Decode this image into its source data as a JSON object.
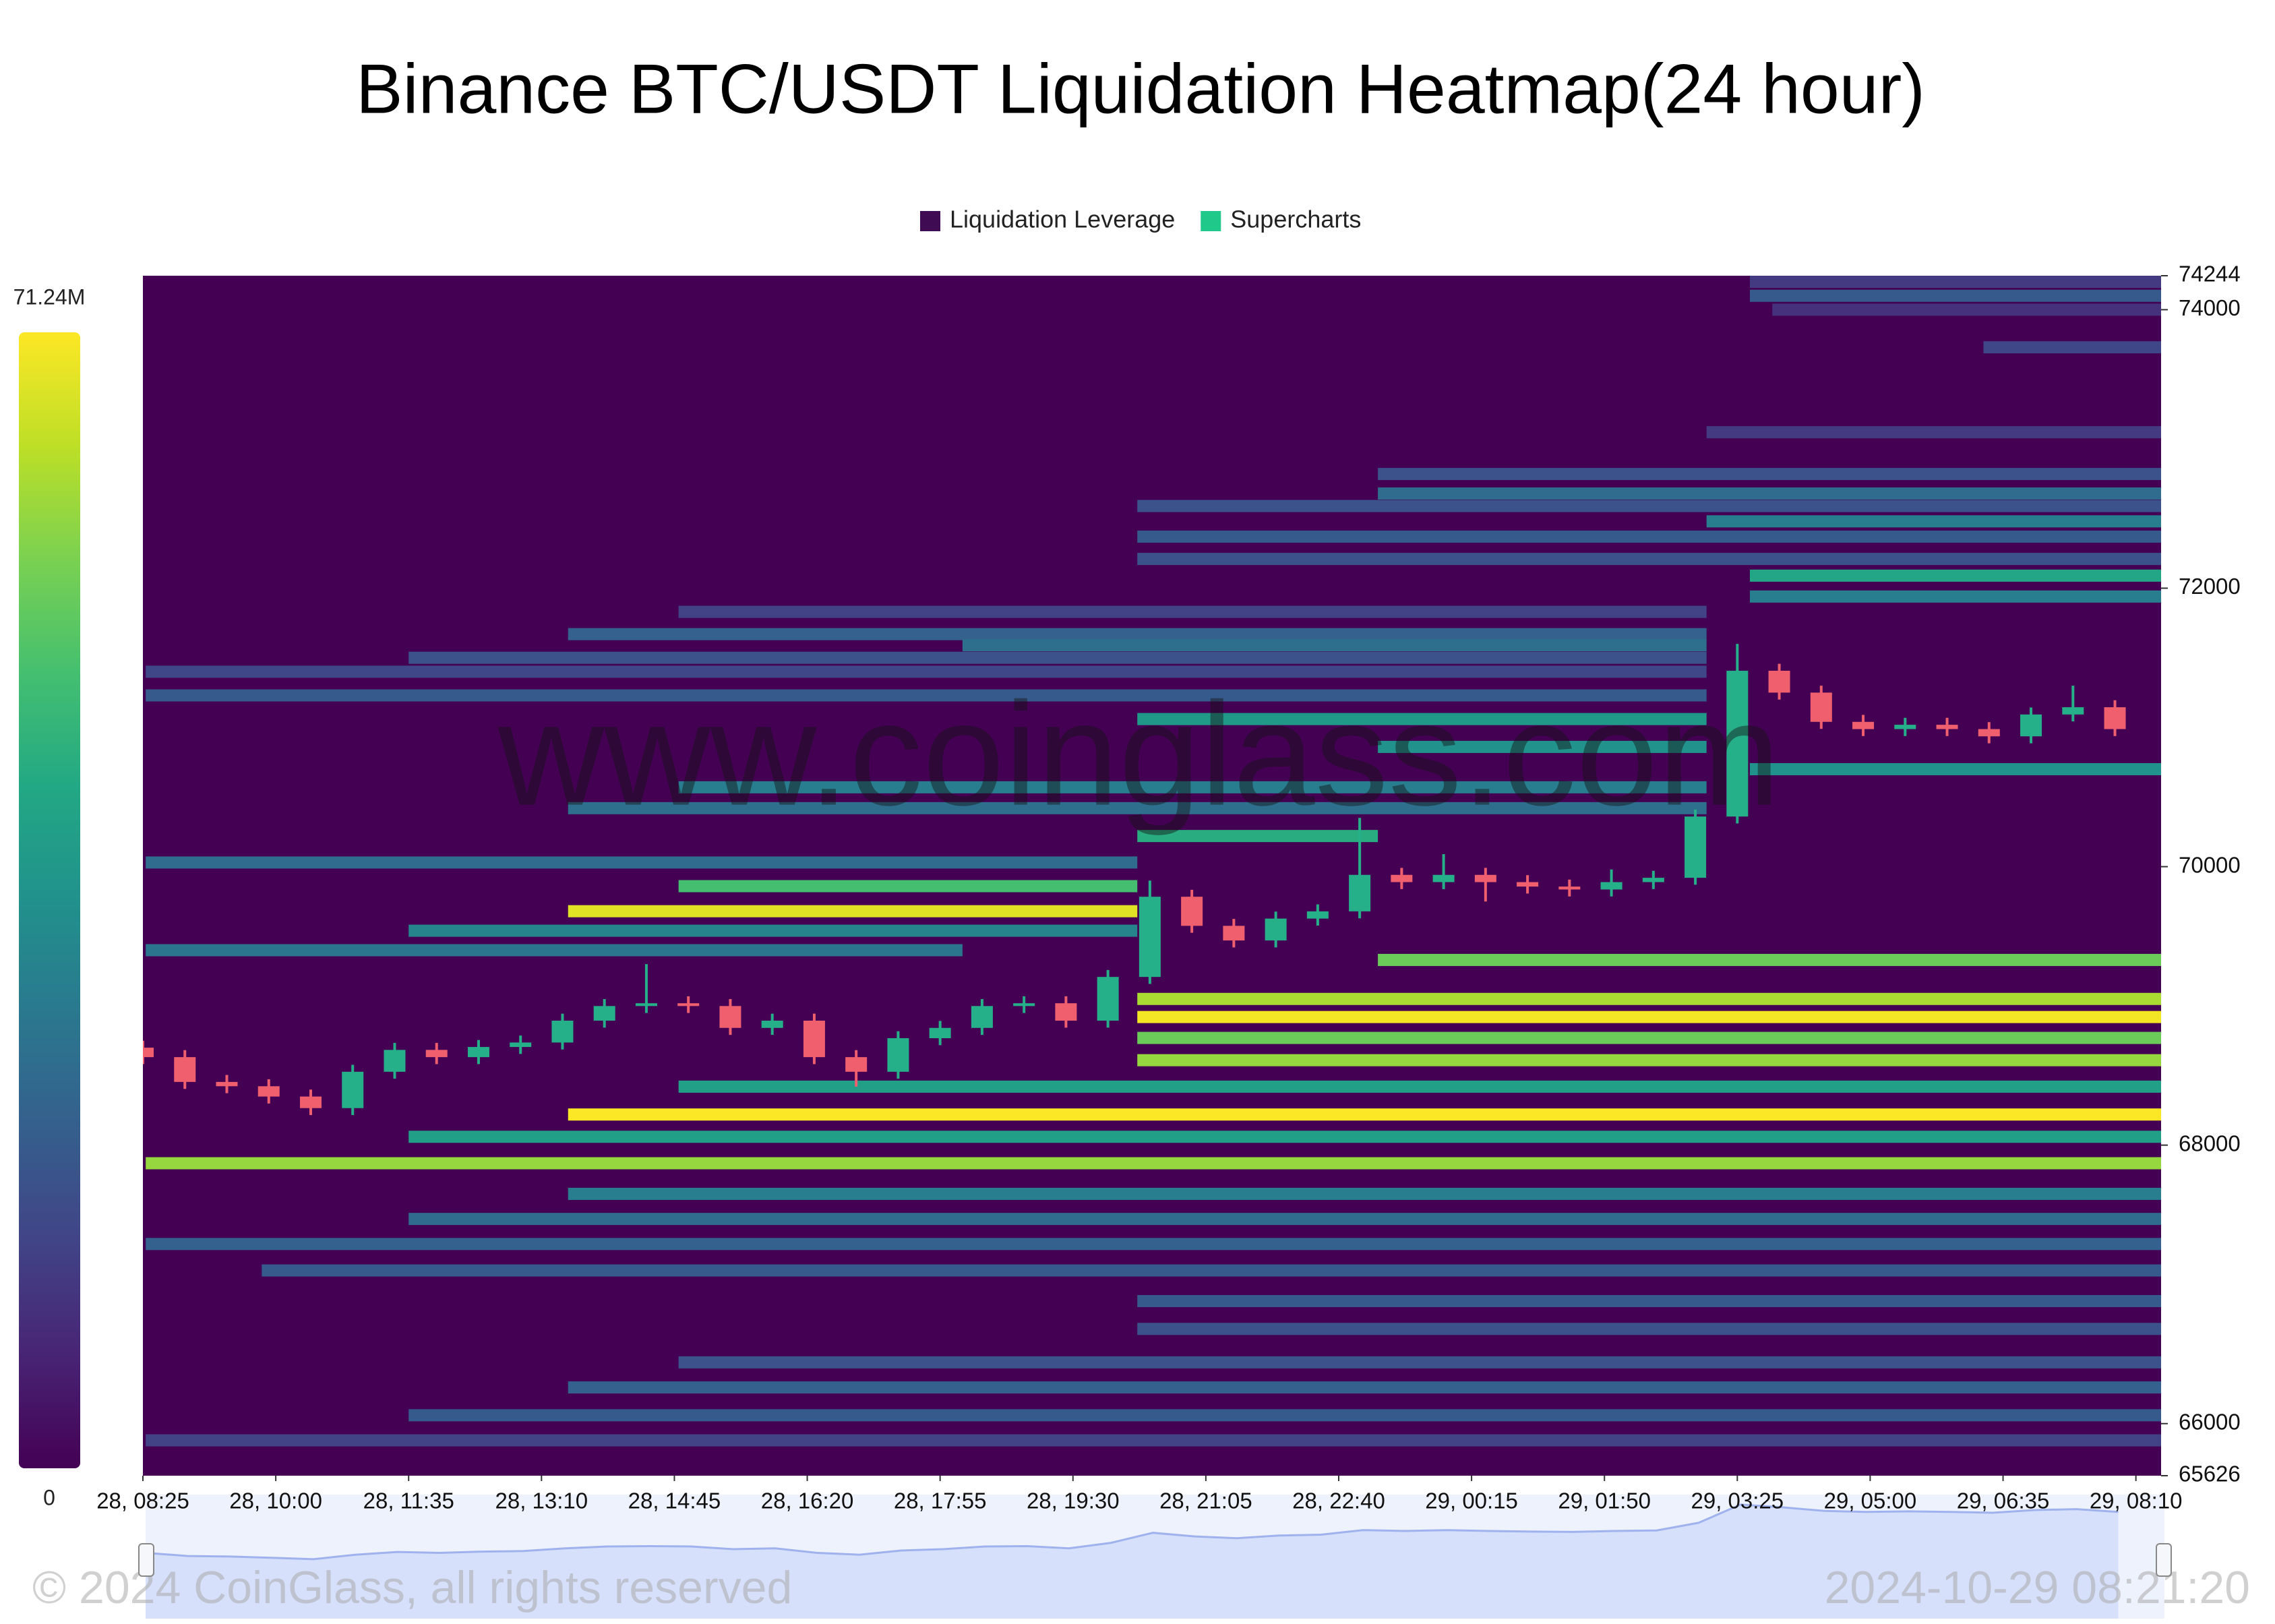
{
  "chart_data": {
    "type": "heatmap",
    "title": "Binance BTC/USDT Liquidation Heatmap(24 hour)",
    "legend": [
      {
        "name": "Liquidation Leverage",
        "color": "#3f0b52"
      },
      {
        "name": "Supercharts",
        "color": "#20c98a"
      }
    ],
    "colorbar": {
      "colormap": "viridis",
      "lim": [
        0,
        71240000
      ],
      "ticks": [
        0,
        {
          "value": 71240000,
          "label": "71.24M"
        }
      ]
    },
    "ylim": [
      65626,
      74244
    ],
    "yticks": [
      65626,
      66000,
      68000,
      70000,
      72000,
      74000,
      74244
    ],
    "xlim": [
      "28, 08:25",
      "29, 08:28"
    ],
    "xticks": [
      "28, 08:25",
      "28, 10:00",
      "28, 11:35",
      "28, 13:10",
      "28, 14:45",
      "28, 16:20",
      "28, 17:55",
      "28, 19:30",
      "28, 21:05",
      "28, 22:40",
      "29, 00:15",
      "29, 01:50",
      "29, 03:25",
      "29, 05:00",
      "29, 06:35",
      "29, 08:10"
    ],
    "bands": [
      {
        "price": 74200,
        "start": "29, 03:34",
        "end": "29, 08:28",
        "value": 12000000
      },
      {
        "price": 74100,
        "start": "29, 03:34",
        "end": "29, 08:28",
        "value": 20000000
      },
      {
        "price": 74000,
        "start": "29, 03:50",
        "end": "29, 08:28",
        "value": 10000000
      },
      {
        "price": 73730,
        "start": "29, 06:21",
        "end": "29, 08:28",
        "value": 15000000
      },
      {
        "price": 73120,
        "start": "29, 03:03",
        "end": "29, 08:28",
        "value": 12000000
      },
      {
        "price": 72820,
        "start": "28, 23:08",
        "end": "29, 08:28",
        "value": 18000000
      },
      {
        "price": 72680,
        "start": "28, 23:08",
        "end": "29, 08:28",
        "value": 25000000
      },
      {
        "price": 72590,
        "start": "28, 20:16",
        "end": "29, 08:28",
        "value": 18000000
      },
      {
        "price": 72480,
        "start": "29, 03:03",
        "end": "29, 08:28",
        "value": 30000000
      },
      {
        "price": 72370,
        "start": "28, 20:16",
        "end": "29, 08:28",
        "value": 20000000
      },
      {
        "price": 72210,
        "start": "28, 20:16",
        "end": "29, 08:28",
        "value": 18000000
      },
      {
        "price": 72090,
        "start": "29, 03:34",
        "end": "29, 08:28",
        "value": 42000000
      },
      {
        "price": 71940,
        "start": "29, 03:34",
        "end": "29, 08:28",
        "value": 30000000
      },
      {
        "price": 71830,
        "start": "28, 14:48",
        "end": "29, 03:03",
        "value": 14000000
      },
      {
        "price": 71670,
        "start": "28, 13:29",
        "end": "29, 03:03",
        "value": 22000000
      },
      {
        "price": 71590,
        "start": "28, 18:11",
        "end": "29, 03:03",
        "value": 26000000
      },
      {
        "price": 71500,
        "start": "28, 11:35",
        "end": "29, 03:03",
        "value": 18000000
      },
      {
        "price": 71400,
        "start": "28, 08:27",
        "end": "29, 03:03",
        "value": 15000000
      },
      {
        "price": 71230,
        "start": "28, 08:27",
        "end": "29, 03:03",
        "value": 20000000
      },
      {
        "price": 71060,
        "start": "28, 20:16",
        "end": "29, 03:03",
        "value": 38000000
      },
      {
        "price": 70860,
        "start": "28, 23:08",
        "end": "29, 03:03",
        "value": 36000000
      },
      {
        "price": 70700,
        "start": "29, 03:34",
        "end": "29, 08:28",
        "value": 36000000
      },
      {
        "price": 70570,
        "start": "28, 14:48",
        "end": "29, 03:03",
        "value": 30000000
      },
      {
        "price": 70420,
        "start": "28, 13:29",
        "end": "29, 03:03",
        "value": 26000000
      },
      {
        "price": 70220,
        "start": "28, 20:16",
        "end": "28, 23:08",
        "value": 44000000
      },
      {
        "price": 70030,
        "start": "28, 08:27",
        "end": "28, 20:16",
        "value": 25000000
      },
      {
        "price": 69860,
        "start": "28, 14:48",
        "end": "28, 20:16",
        "value": 50000000
      },
      {
        "price": 69680,
        "start": "28, 13:29",
        "end": "28, 20:16",
        "value": 68000000
      },
      {
        "price": 69540,
        "start": "28, 11:35",
        "end": "28, 20:16",
        "value": 32000000
      },
      {
        "price": 69400,
        "start": "28, 08:27",
        "end": "28, 18:11",
        "value": 28000000
      },
      {
        "price": 69330,
        "start": "28, 23:08",
        "end": "29, 08:28",
        "value": 55000000
      },
      {
        "price": 69050,
        "start": "28, 20:16",
        "end": "29, 08:28",
        "value": 62000000
      },
      {
        "price": 68920,
        "start": "28, 20:16",
        "end": "29, 08:28",
        "value": 70000000
      },
      {
        "price": 68770,
        "start": "28, 20:16",
        "end": "29, 08:28",
        "value": 55000000
      },
      {
        "price": 68610,
        "start": "28, 20:16",
        "end": "29, 08:28",
        "value": 60000000
      },
      {
        "price": 68420,
        "start": "28, 14:48",
        "end": "29, 08:28",
        "value": 40000000
      },
      {
        "price": 68220,
        "start": "28, 13:29",
        "end": "29, 08:28",
        "value": 71000000
      },
      {
        "price": 68060,
        "start": "28, 11:35",
        "end": "29, 08:28",
        "value": 40000000
      },
      {
        "price": 67870,
        "start": "28, 08:27",
        "end": "29, 08:28",
        "value": 60000000
      },
      {
        "price": 67650,
        "start": "28, 13:29",
        "end": "29, 08:28",
        "value": 30000000
      },
      {
        "price": 67470,
        "start": "28, 11:35",
        "end": "29, 08:28",
        "value": 25000000
      },
      {
        "price": 67290,
        "start": "28, 08:27",
        "end": "29, 08:28",
        "value": 22000000
      },
      {
        "price": 67100,
        "start": "28, 09:50",
        "end": "29, 08:28",
        "value": 20000000
      },
      {
        "price": 66880,
        "start": "28, 20:16",
        "end": "29, 08:28",
        "value": 20000000
      },
      {
        "price": 66680,
        "start": "28, 20:16",
        "end": "29, 08:28",
        "value": 18000000
      },
      {
        "price": 66440,
        "start": "28, 14:48",
        "end": "29, 08:28",
        "value": 18000000
      },
      {
        "price": 66260,
        "start": "28, 13:29",
        "end": "29, 08:28",
        "value": 22000000
      },
      {
        "price": 66060,
        "start": "28, 11:35",
        "end": "29, 08:28",
        "value": 20000000
      },
      {
        "price": 65880,
        "start": "28, 08:27",
        "end": "29, 08:28",
        "value": 14000000
      }
    ],
    "candles": {
      "up_color": "#26b08a",
      "down_color": "#ef5f6e",
      "x": [
        "28, 08:25",
        "28, 08:55",
        "28, 09:25",
        "28, 09:55",
        "28, 10:25",
        "28, 10:55",
        "28, 11:25",
        "28, 11:55",
        "28, 12:25",
        "28, 12:55",
        "28, 13:25",
        "28, 13:55",
        "28, 14:25",
        "28, 14:55",
        "28, 15:25",
        "28, 15:55",
        "28, 16:25",
        "28, 16:55",
        "28, 17:25",
        "28, 17:55",
        "28, 18:25",
        "28, 18:55",
        "28, 19:25",
        "28, 19:55",
        "28, 20:25",
        "28, 20:55",
        "28, 21:25",
        "28, 21:55",
        "28, 22:25",
        "28, 22:55",
        "28, 23:25",
        "28, 23:55",
        "29, 00:25",
        "29, 00:55",
        "29, 01:25",
        "29, 01:55",
        "29, 02:25",
        "29, 02:55",
        "29, 03:25",
        "29, 03:55",
        "29, 04:25",
        "29, 04:55",
        "29, 05:25",
        "29, 05:55",
        "29, 06:25",
        "29, 06:55",
        "29, 07:25",
        "29, 07:55"
      ],
      "open": [
        68700,
        68632,
        68454,
        68423,
        68349,
        68266,
        68527,
        68684,
        68632,
        68705,
        68737,
        68894,
        68999,
        69019,
        68999,
        68842,
        68894,
        68632,
        68527,
        68768,
        68842,
        68999,
        69019,
        68894,
        69208,
        69784,
        69575,
        69470,
        69627,
        69679,
        69941,
        69889,
        69941,
        69889,
        69857,
        69836,
        69889,
        69920,
        70360,
        71407,
        71250,
        71040,
        70988,
        71019,
        70988,
        70936,
        71093,
        71145
      ],
      "high": [
        68750,
        68682,
        68504,
        68473,
        68399,
        68577,
        68734,
        68734,
        68755,
        68787,
        68944,
        69049,
        69300,
        69069,
        69049,
        68944,
        68944,
        68682,
        68818,
        68892,
        69049,
        69069,
        69069,
        69258,
        69900,
        69834,
        69625,
        69677,
        69729,
        70350,
        69991,
        70090,
        69991,
        69939,
        69907,
        69980,
        69970,
        70410,
        71600,
        71457,
        71300,
        71090,
        71069,
        71069,
        71038,
        71143,
        71300,
        71195
      ],
      "low": [
        68582,
        68404,
        68373,
        68299,
        68216,
        68216,
        68477,
        68582,
        68582,
        68655,
        68687,
        68844,
        68949,
        68949,
        68792,
        68792,
        68582,
        68420,
        68477,
        68718,
        68792,
        68949,
        68844,
        68844,
        69158,
        69525,
        69420,
        69420,
        69577,
        69629,
        69839,
        69839,
        69750,
        69807,
        69786,
        69786,
        69839,
        69870,
        70310,
        71200,
        70990,
        70938,
        70938,
        70938,
        70886,
        70886,
        71043,
        70938
      ],
      "close": [
        68632,
        68454,
        68423,
        68349,
        68266,
        68527,
        68684,
        68632,
        68705,
        68737,
        68894,
        68999,
        69019,
        68999,
        68842,
        68894,
        68632,
        68527,
        68768,
        68842,
        68999,
        69019,
        68894,
        69208,
        69784,
        69575,
        69470,
        69627,
        69679,
        69941,
        69889,
        69941,
        69889,
        69857,
        69836,
        69889,
        69920,
        70360,
        71407,
        71250,
        71040,
        70988,
        71019,
        70988,
        70936,
        71093,
        71145,
        70988
      ]
    },
    "watermark": "www.coinglass.com",
    "footer_left": "© 2024 CoinGlass, all rights reserved",
    "footer_right": "2024-10-29 08:21:20"
  }
}
